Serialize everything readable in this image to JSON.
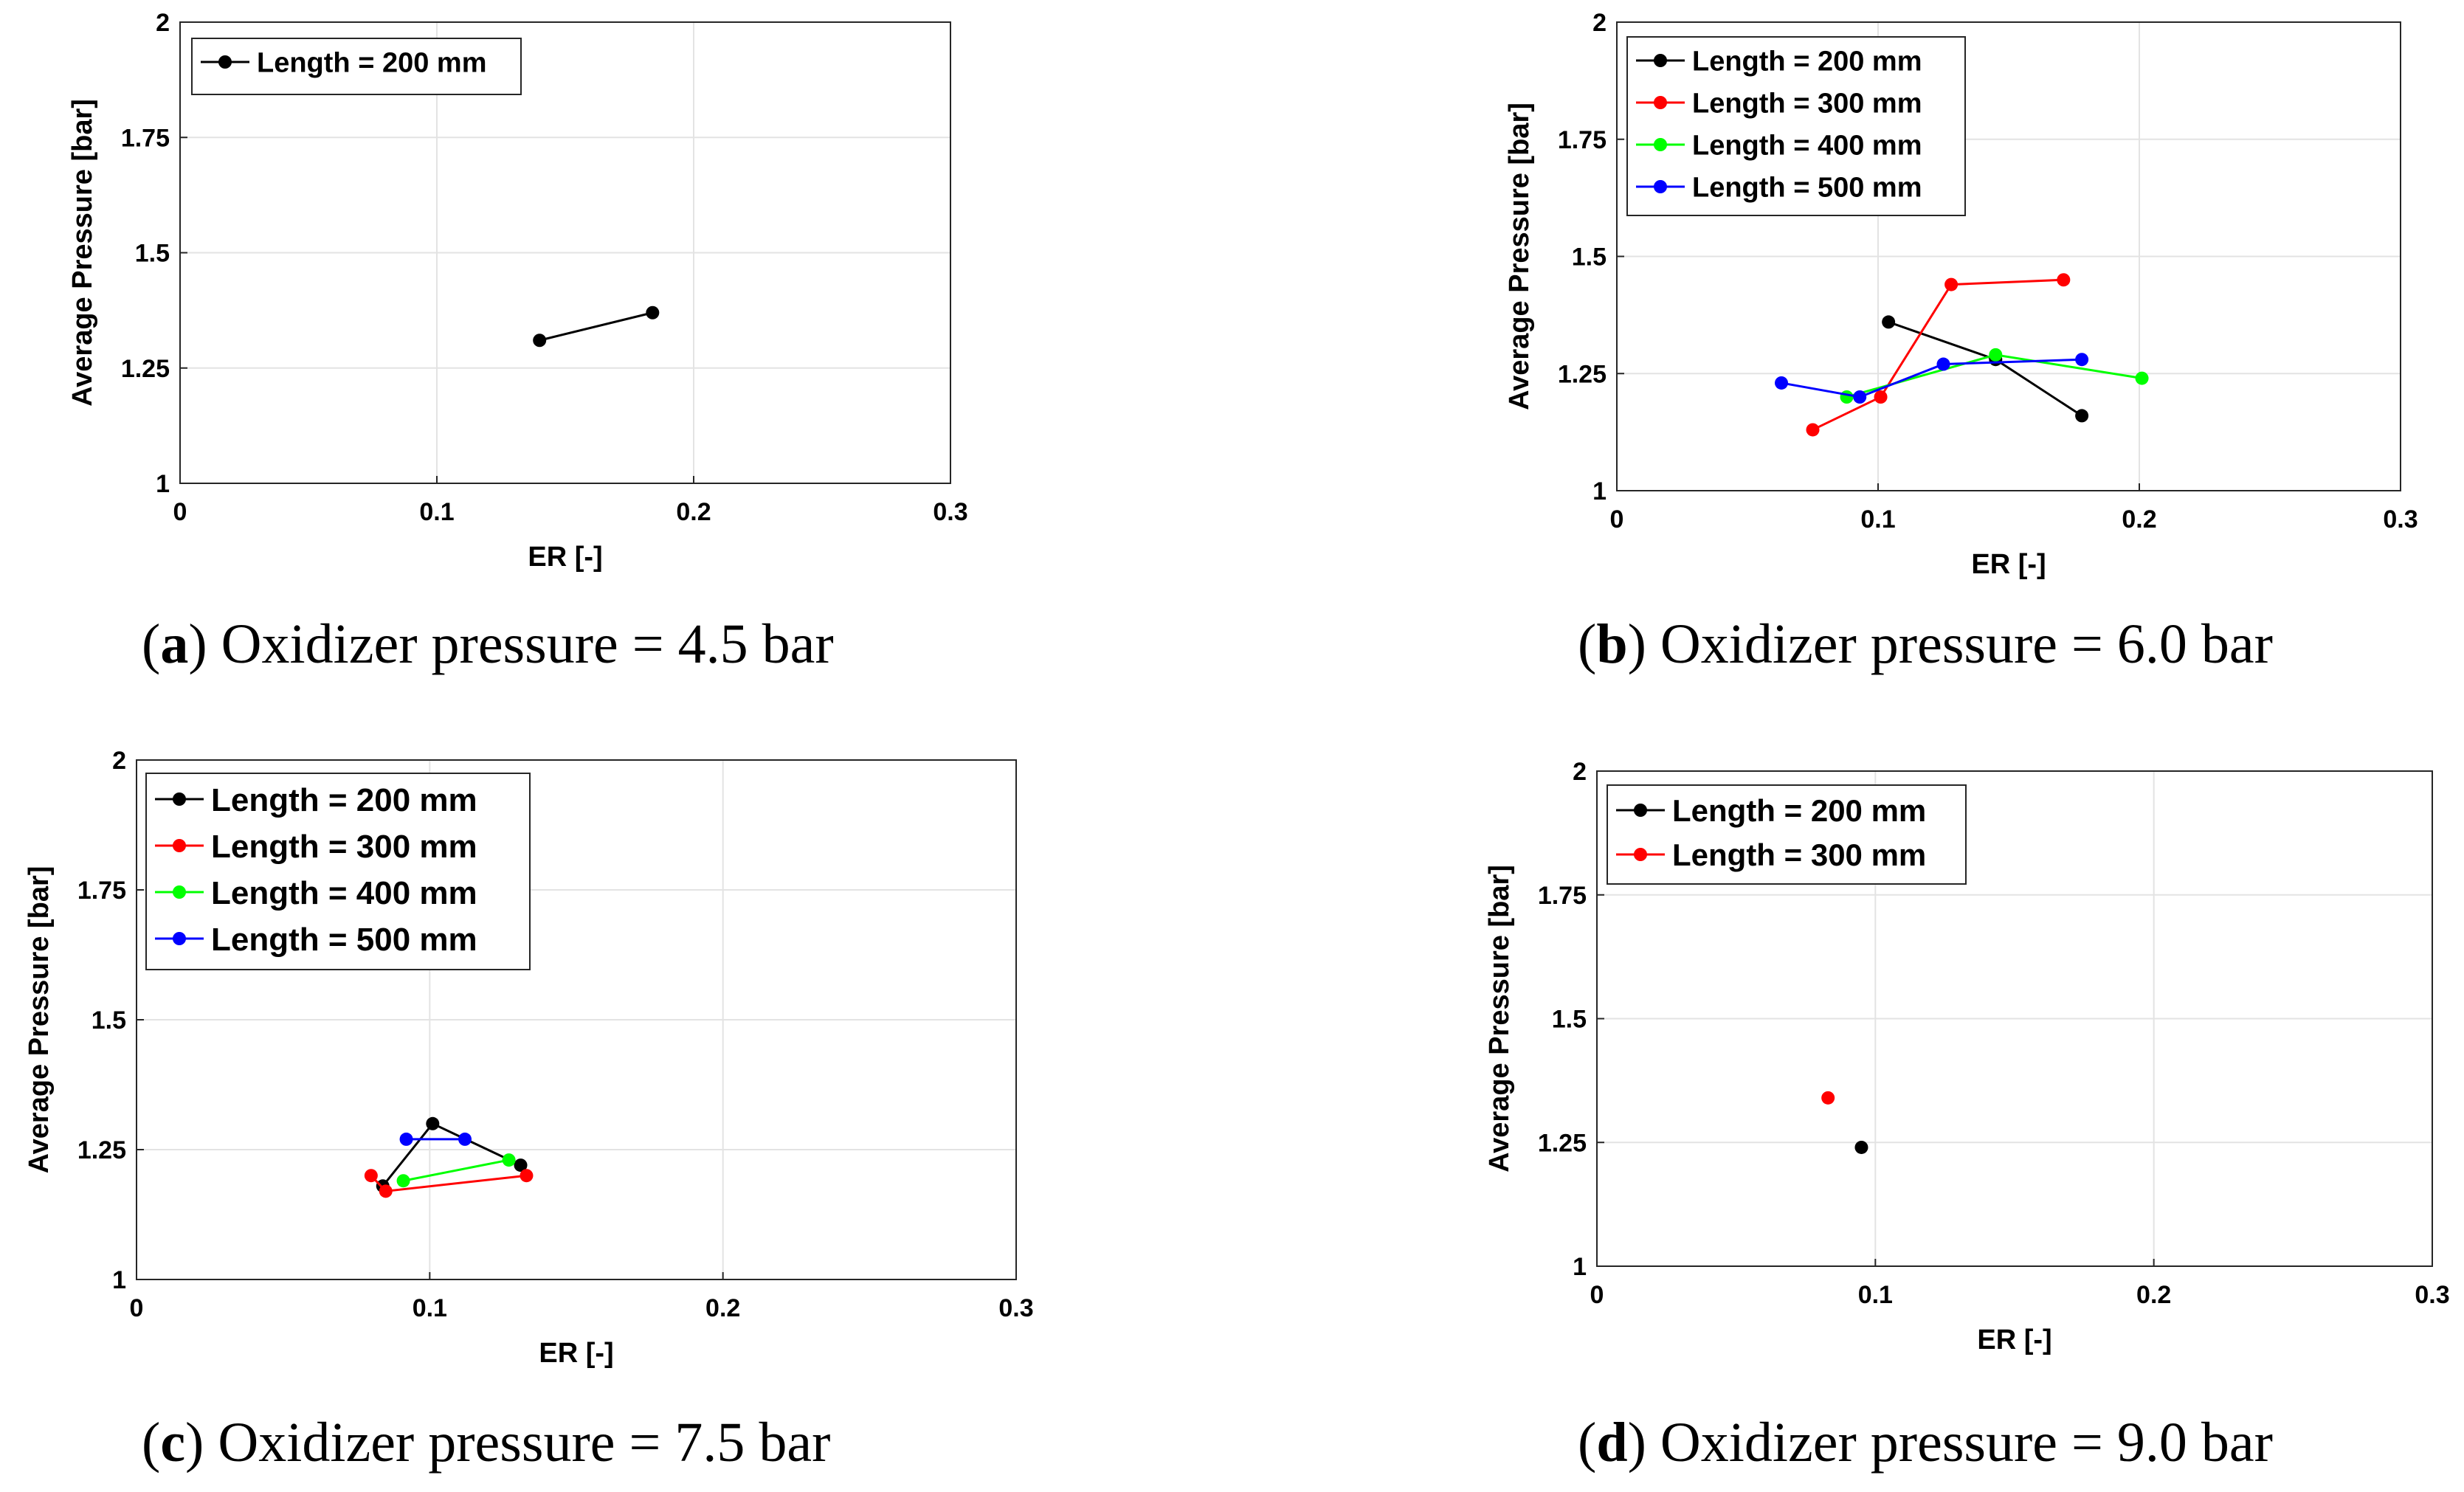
{
  "chart_data": [
    {
      "type": "line",
      "caption_letter": "a",
      "caption_text": ") Oxidizer pressure = 4.5 bar",
      "xlabel": "ER [-]",
      "ylabel": "Average Pressure [bar]",
      "xlim": [
        0,
        0.3
      ],
      "ylim": [
        1,
        2
      ],
      "xticks": [
        0,
        0.1,
        0.2,
        0.3
      ],
      "xtick_labels": [
        "0",
        "0.1",
        "0.2",
        "0.3"
      ],
      "yticks": [
        1,
        1.25,
        1.5,
        1.75,
        2
      ],
      "ytick_labels": [
        "1",
        "1.25",
        "1.5",
        "1.75",
        "2"
      ],
      "grid": true,
      "legend_position": "top-left",
      "series": [
        {
          "name": "Length = 200 mm",
          "color": "#000000",
          "x": [
            0.14,
            0.184
          ],
          "y": [
            1.31,
            1.37
          ]
        }
      ]
    },
    {
      "type": "line",
      "caption_letter": "b",
      "caption_text": ") Oxidizer pressure = 6.0 bar",
      "xlabel": "ER [-]",
      "ylabel": "Average Pressure [bar]",
      "xlim": [
        0,
        0.3
      ],
      "ylim": [
        1,
        2
      ],
      "xticks": [
        0,
        0.1,
        0.2,
        0.3
      ],
      "xtick_labels": [
        "0",
        "0.1",
        "0.2",
        "0.3"
      ],
      "yticks": [
        1,
        1.25,
        1.5,
        1.75,
        2
      ],
      "ytick_labels": [
        "1",
        "1.25",
        "1.5",
        "1.75",
        "2"
      ],
      "grid": true,
      "legend_position": "top-left",
      "series": [
        {
          "name": "Length = 200 mm",
          "color": "#000000",
          "x": [
            0.104,
            0.145,
            0.178
          ],
          "y": [
            1.36,
            1.28,
            1.16
          ]
        },
        {
          "name": "Length = 300 mm",
          "color": "#ff0000",
          "x": [
            0.075,
            0.101,
            0.128,
            0.171
          ],
          "y": [
            1.13,
            1.2,
            1.44,
            1.45
          ]
        },
        {
          "name": "Length = 400 mm",
          "color": "#00ff00",
          "x": [
            0.088,
            0.145,
            0.201
          ],
          "y": [
            1.2,
            1.29,
            1.24
          ]
        },
        {
          "name": "Length = 500 mm",
          "color": "#0000ff",
          "x": [
            0.063,
            0.093,
            0.125,
            0.178
          ],
          "y": [
            1.23,
            1.2,
            1.27,
            1.28
          ]
        }
      ]
    },
    {
      "type": "line",
      "caption_letter": "c",
      "caption_text": ") Oxidizer pressure = 7.5 bar",
      "xlabel": "ER [-]",
      "ylabel": "Average Pressure [bar]",
      "xlim": [
        0,
        0.3
      ],
      "ylim": [
        1,
        2
      ],
      "xticks": [
        0,
        0.1,
        0.2,
        0.3
      ],
      "xtick_labels": [
        "0",
        "0.1",
        "0.2",
        "0.3"
      ],
      "yticks": [
        1,
        1.25,
        1.5,
        1.75,
        2
      ],
      "ytick_labels": [
        "1",
        "1.25",
        "1.5",
        "1.75",
        "2"
      ],
      "grid": true,
      "legend_position": "top-left",
      "series": [
        {
          "name": "Length = 200 mm",
          "color": "#000000",
          "x": [
            0.084,
            0.101,
            0.131
          ],
          "y": [
            1.18,
            1.3,
            1.22
          ]
        },
        {
          "name": "Length = 300 mm",
          "color": "#ff0000",
          "x": [
            0.08,
            0.085,
            0.133
          ],
          "y": [
            1.2,
            1.17,
            1.2
          ]
        },
        {
          "name": "Length = 400 mm",
          "color": "#00ff00",
          "x": [
            0.091,
            0.127
          ],
          "y": [
            1.19,
            1.23
          ]
        },
        {
          "name": "Length = 500 mm",
          "color": "#0000ff",
          "x": [
            0.092,
            0.112
          ],
          "y": [
            1.27,
            1.27
          ]
        }
      ]
    },
    {
      "type": "scatter",
      "caption_letter": "d",
      "caption_text": ") Oxidizer pressure = 9.0 bar",
      "xlabel": "ER [-]",
      "ylabel": "Average Pressure [bar]",
      "xlim": [
        0,
        0.3
      ],
      "ylim": [
        1,
        2
      ],
      "xticks": [
        0,
        0.1,
        0.2,
        0.3
      ],
      "xtick_labels": [
        "0",
        "0.1",
        "0.2",
        "0.3"
      ],
      "yticks": [
        1,
        1.25,
        1.5,
        1.75,
        2
      ],
      "ytick_labels": [
        "1",
        "1.25",
        "1.5",
        "1.75",
        "2"
      ],
      "grid": true,
      "legend_position": "top-left",
      "series": [
        {
          "name": "Length = 200 mm",
          "color": "#000000",
          "x": [
            0.095
          ],
          "y": [
            1.24
          ]
        },
        {
          "name": "Length = 300 mm",
          "color": "#ff0000",
          "x": [
            0.083
          ],
          "y": [
            1.34
          ]
        }
      ]
    }
  ]
}
